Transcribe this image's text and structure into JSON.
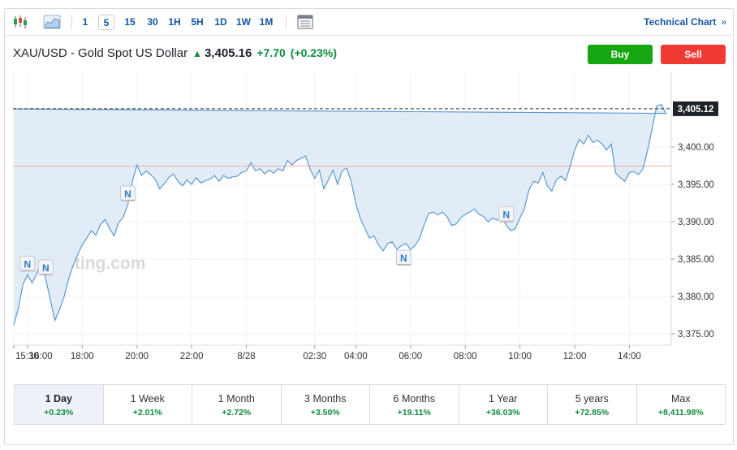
{
  "toolbar": {
    "periods": [
      "1",
      "5",
      "15",
      "30",
      "1H",
      "5H",
      "1D",
      "1W",
      "1M"
    ],
    "active_period": "5",
    "technical_chart_label": "Technical Chart",
    "technical_chart_arrow": "»"
  },
  "header": {
    "instrument": "XAU/USD - Gold Spot US Dollar",
    "price": "3,405.16",
    "change": "+7.70",
    "change_pct": "(+0.23%)",
    "up_color": "#0e8a3e"
  },
  "buttons": {
    "buy": "Buy",
    "sell": "Sell",
    "buy_color": "#16a612",
    "sell_color": "#ee3a33"
  },
  "watermark": "nvesting.com",
  "news_marker": "N",
  "chart_data": {
    "type": "area",
    "y_ticks": [
      "3,375.00",
      "3,380.00",
      "3,385.00",
      "3,390.00",
      "3,395.00",
      "3,400.00"
    ],
    "x_ticks": [
      "16:00",
      "18:00",
      "20:00",
      "22:00",
      "8/28",
      "02:30",
      "04:00",
      "06:00",
      "08:00",
      "10:00",
      "12:00",
      "14:00",
      "15:30"
    ],
    "last_value_label": "3,405.12",
    "last_value": 3405.12,
    "previous_close": 3397.46,
    "ylim": [
      3373,
      3407.5
    ],
    "line_color": "#5c9ad1",
    "fill_color": "#e2ecf6",
    "prev_close_color": "#f4a9a9",
    "news_marker_times": [
      "16:00",
      "16:40",
      "19:40",
      "05:45",
      "09:30"
    ],
    "series": [
      {
        "x": [
          "15:30",
          "15:40",
          "15:50",
          "16:00",
          "16:10",
          "16:20",
          "16:30",
          "16:40",
          "16:50",
          "17:00",
          "17:10",
          "17:20",
          "17:30",
          "17:40",
          "17:50",
          "18:00",
          "18:10",
          "18:20",
          "18:30",
          "18:40",
          "18:50",
          "19:00",
          "19:10",
          "19:20",
          "19:30",
          "19:40",
          "19:50",
          "20:00",
          "20:10",
          "20:20",
          "20:30",
          "20:40",
          "20:50",
          "21:00",
          "21:10",
          "21:20",
          "21:30",
          "21:40",
          "21:50",
          "22:00",
          "22:10",
          "22:20",
          "22:30",
          "22:40",
          "22:50",
          "23:00",
          "23:10",
          "23:20",
          "23:30",
          "23:40",
          "23:50",
          "00:00",
          "00:10",
          "00:20",
          "00:30",
          "00:40",
          "00:50",
          "01:00",
          "01:10",
          "01:20",
          "01:30",
          "01:40",
          "01:50",
          "02:00",
          "02:10",
          "02:20",
          "02:30",
          "02:40",
          "02:50",
          "03:00",
          "03:10",
          "03:20",
          "03:30",
          "03:40",
          "03:50",
          "04:00",
          "04:10",
          "04:20",
          "04:30",
          "04:40",
          "04:50",
          "05:00",
          "05:10",
          "05:20",
          "05:30",
          "05:40",
          "05:50",
          "06:00",
          "06:10",
          "06:20",
          "06:30",
          "06:40",
          "06:50",
          "07:00",
          "07:10",
          "07:20",
          "07:30",
          "07:40",
          "07:50",
          "08:00",
          "08:10",
          "08:20",
          "08:30",
          "08:40",
          "08:50",
          "09:00",
          "09:10",
          "09:20",
          "09:30",
          "09:40",
          "09:50",
          "10:00",
          "10:10",
          "10:20",
          "10:30",
          "10:40",
          "10:50",
          "11:00",
          "11:10",
          "11:20",
          "11:30",
          "11:40",
          "11:50",
          "12:00",
          "12:10",
          "12:20",
          "12:30",
          "12:40",
          "12:50",
          "13:00",
          "13:10",
          "13:20",
          "13:30",
          "13:40",
          "13:50",
          "14:00",
          "14:10",
          "14:20",
          "14:30",
          "14:40",
          "14:50",
          "15:00",
          "15:10",
          "15:20",
          "15:30"
        ],
        "y": [
          3376.2,
          3378.4,
          3381.6,
          3382.9,
          3381.8,
          3383.0,
          3384.8,
          3382.4,
          3379.6,
          3376.8,
          3378.2,
          3379.9,
          3382.3,
          3384.1,
          3385.6,
          3386.9,
          3387.8,
          3388.8,
          3388.2,
          3389.6,
          3390.3,
          3389.1,
          3388.1,
          3389.9,
          3390.6,
          3392.3,
          3395.4,
          3397.6,
          3396.2,
          3396.8,
          3396.3,
          3395.7,
          3394.4,
          3395.1,
          3395.9,
          3396.4,
          3395.4,
          3394.8,
          3395.6,
          3395.0,
          3395.9,
          3395.2,
          3395.5,
          3395.7,
          3396.2,
          3395.4,
          3396.2,
          3395.8,
          3396.0,
          3396.1,
          3396.6,
          3396.8,
          3397.9,
          3396.8,
          3397.1,
          3396.4,
          3396.9,
          3396.5,
          3397.1,
          3396.8,
          3398.2,
          3397.6,
          3398.2,
          3398.5,
          3398.8,
          3397.0,
          3395.8,
          3396.9,
          3394.4,
          3395.6,
          3396.9,
          3395.0,
          3396.8,
          3397.2,
          3395.4,
          3392.4,
          3390.4,
          3389.1,
          3387.8,
          3388.1,
          3386.9,
          3386.1,
          3387.1,
          3387.3,
          3386.3,
          3386.8,
          3387.1,
          3386.3,
          3386.8,
          3387.8,
          3389.6,
          3391.1,
          3391.3,
          3390.9,
          3391.3,
          3390.7,
          3389.5,
          3389.7,
          3390.5,
          3391.0,
          3391.3,
          3391.7,
          3391.0,
          3390.7,
          3390.0,
          3390.5,
          3390.2,
          3390.7,
          3389.5,
          3388.8,
          3389.1,
          3390.5,
          3391.8,
          3394.3,
          3395.4,
          3395.2,
          3396.6,
          3394.8,
          3394.1,
          3395.6,
          3396.1,
          3395.5,
          3397.4,
          3399.6,
          3401.0,
          3400.4,
          3401.6,
          3400.6,
          3400.9,
          3400.4,
          3399.6,
          3400.4,
          3396.5,
          3395.9,
          3395.4,
          3396.6,
          3396.7,
          3396.3,
          3397.1,
          3399.6,
          3402.5,
          3405.5,
          3405.7,
          3404.5,
          3405.1
        ]
      }
    ]
  },
  "ranges": [
    {
      "label": "1 Day",
      "change": "+0.23%"
    },
    {
      "label": "1 Week",
      "change": "+2.01%"
    },
    {
      "label": "1 Month",
      "change": "+2.72%"
    },
    {
      "label": "3 Months",
      "change": "+3.50%"
    },
    {
      "label": "6 Months",
      "change": "+19.11%"
    },
    {
      "label": "1 Year",
      "change": "+36.03%"
    },
    {
      "label": "5 years",
      "change": "+72.85%"
    },
    {
      "label": "Max",
      "change": "+8,411.98%"
    }
  ],
  "active_range": 0
}
